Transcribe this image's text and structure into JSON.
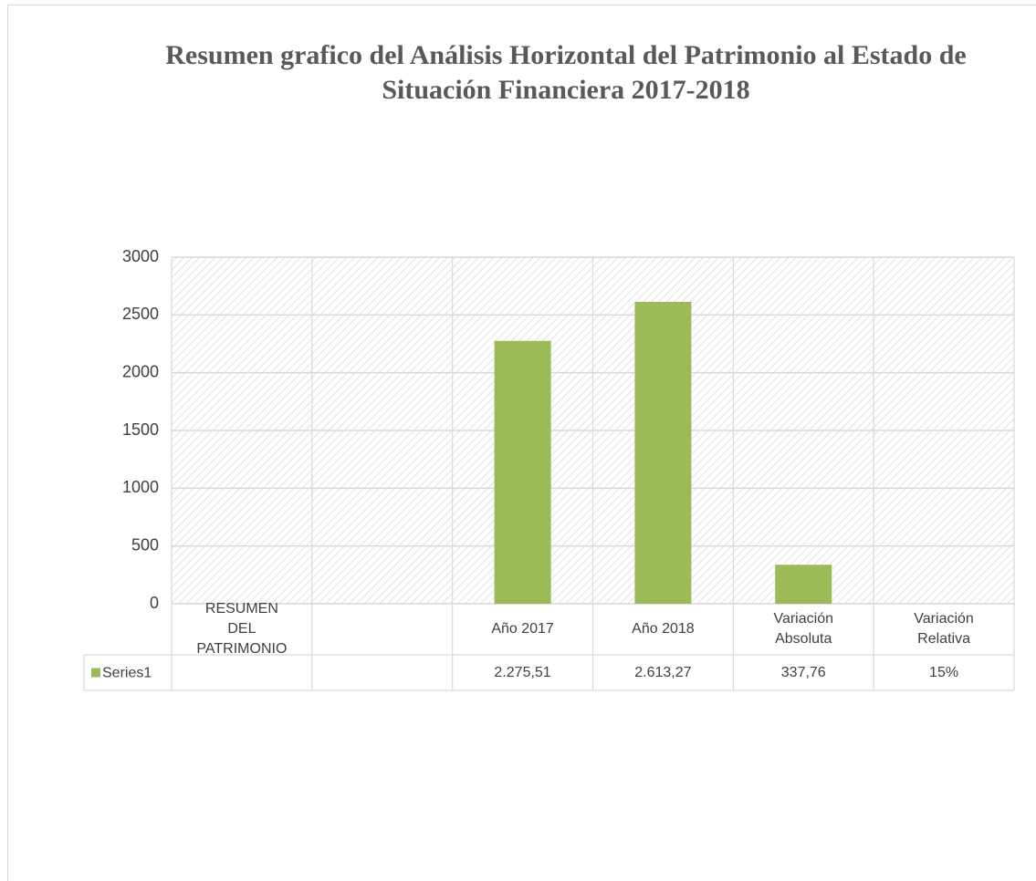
{
  "chart_data": {
    "type": "bar",
    "title": "Resumen grafico del Análisis Horizontal del Patrimonio al Estado de Situación Financiera 2017-2018",
    "categories": [
      "RESUMEN DEL PATRIMONIO",
      null,
      "Año 2017",
      "Año 2018",
      "Variación Absoluta",
      "Variación Relativa"
    ],
    "series": [
      {
        "name": "Series1",
        "color": "#9bbb59",
        "values": [
          null,
          null,
          2275.51,
          2613.27,
          337.76,
          0.15
        ],
        "value_labels": [
          null,
          null,
          "2.275,51",
          "2.613,27",
          "337,76",
          "15%"
        ]
      }
    ],
    "ylim": [
      0,
      3000
    ],
    "yticks": [
      0,
      500,
      1000,
      1500,
      2000,
      2500,
      3000
    ],
    "grid": true,
    "data_table": true
  }
}
